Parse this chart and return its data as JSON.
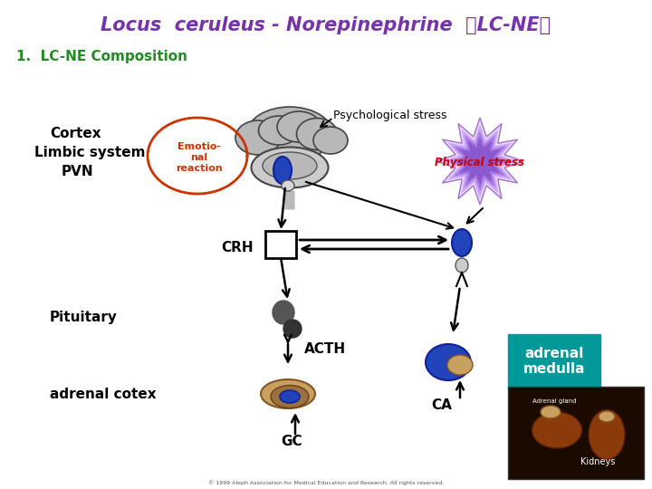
{
  "title": "Locus  ceruleus - Norepinephrine  （LC-NE）",
  "title_color": "#7733aa",
  "title_fontsize": 15,
  "subtitle": "1.  LC-NE Composition",
  "subtitle_color": "#228B22",
  "subtitle_fontsize": 11,
  "bg_color": "#ffffff",
  "labels": {
    "cortex": "Cortex",
    "limbic": "Limbic system",
    "pvn": "PVN",
    "emotional": "Emotio-\nnal\nreaction",
    "psych_stress": "Psychological stress",
    "phys_stress": "Physical stress",
    "crh": "CRH",
    "pituitary": "Pituitary",
    "acth": "ACTH",
    "adrenal_cotex": "adrenal cotex",
    "gc": "GC",
    "ca": "CA",
    "adrenal_medulla": "adrenal\nmedulla"
  },
  "arrow_color": "#000000",
  "emotional_circle_color": "#cc3300",
  "phys_stress_color": "#9966cc",
  "phys_stress_text_color": "#cc0000",
  "adrenal_medulla_bg": "#009999"
}
